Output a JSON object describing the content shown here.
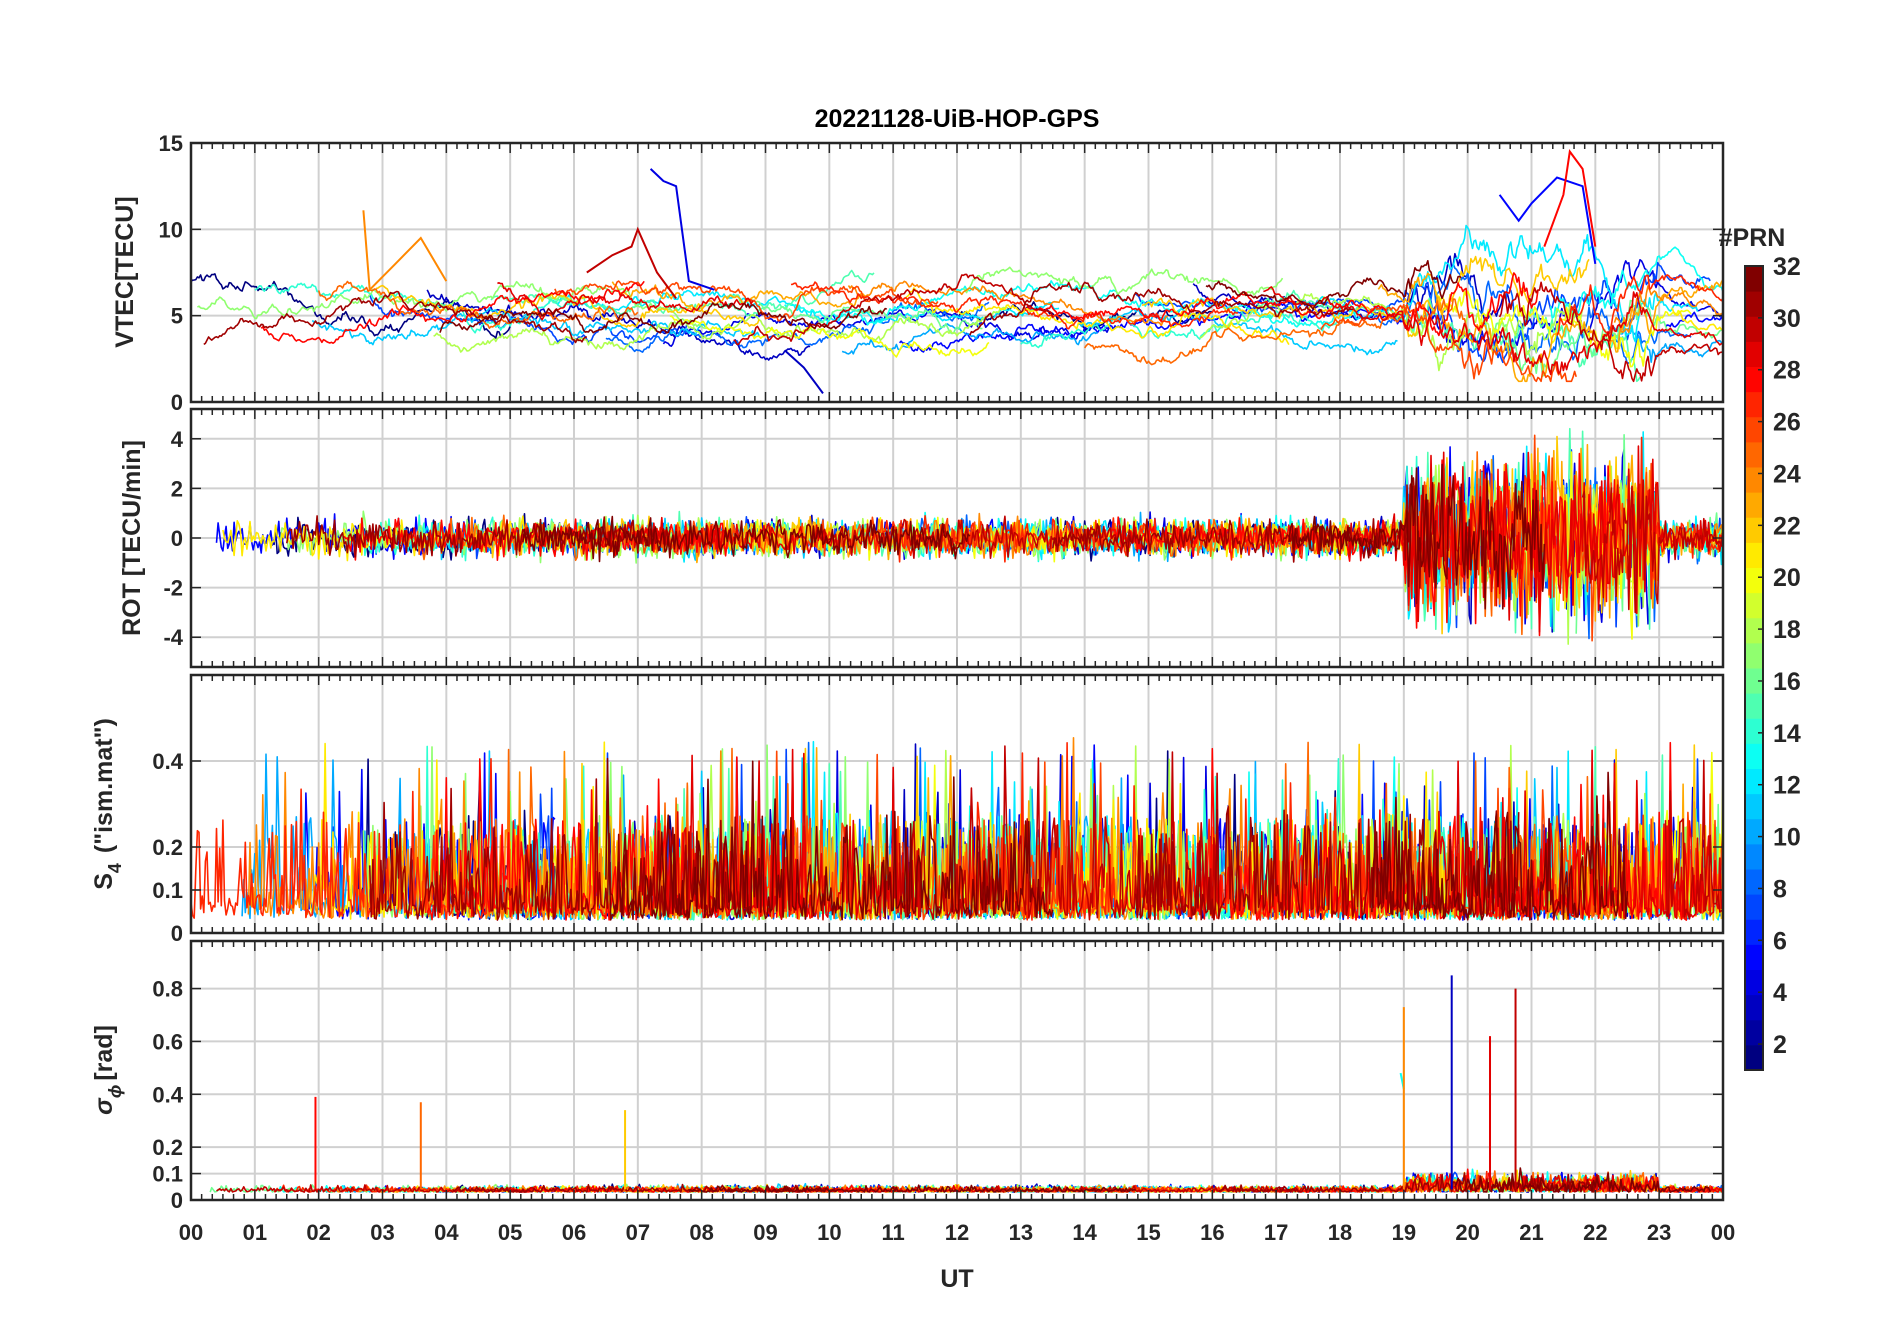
{
  "chart_data": {
    "type": "line",
    "title": "20221128-UiB-HOP-GPS",
    "xlabel": "UT",
    "x_ticks": [
      "00",
      "01",
      "02",
      "03",
      "04",
      "05",
      "06",
      "07",
      "08",
      "09",
      "10",
      "11",
      "12",
      "13",
      "14",
      "15",
      "16",
      "17",
      "18",
      "19",
      "20",
      "21",
      "22",
      "23",
      "00"
    ],
    "xlim": [
      0,
      24
    ],
    "grid": true,
    "colorbar": {
      "label": "#PRN",
      "range": [
        1,
        32
      ],
      "ticks": [
        "2",
        "4",
        "6",
        "8",
        "10",
        "12",
        "14",
        "16",
        "18",
        "20",
        "22",
        "24",
        "26",
        "28",
        "30",
        "32"
      ],
      "colormap": "jet",
      "placement": "right"
    },
    "panels": [
      {
        "ylabel": "VTEC[TECU]",
        "ylim": [
          0,
          15
        ],
        "y_ticks": [
          "0",
          "5",
          "10",
          "15"
        ],
        "series": [
          {
            "prn": 4,
            "x": [
              7.2,
              7.4,
              7.6,
              7.8,
              8.2
            ],
            "y": [
              13.5,
              12.8,
              12.5,
              7.0,
              6.5
            ]
          },
          {
            "prn": 30,
            "x": [
              6.2,
              6.6,
              6.9,
              7.0,
              7.3,
              7.6
            ],
            "y": [
              7.5,
              8.5,
              9.0,
              10.0,
              7.5,
              6.0
            ]
          },
          {
            "prn": 24,
            "x": [
              2.7,
              2.8,
              3.2,
              3.6,
              4.0
            ],
            "y": [
              11.1,
              6.5,
              8.0,
              9.5,
              7.0
            ]
          },
          {
            "prn": 5,
            "x": [
              20.5,
              20.8,
              21.0,
              21.4,
              21.8,
              22.0
            ],
            "y": [
              12.0,
              10.5,
              11.5,
              13.0,
              12.5,
              8.0
            ]
          },
          {
            "prn": 28,
            "x": [
              21.2,
              21.5,
              21.6,
              21.8,
              22.0
            ],
            "y": [
              9.0,
              12.0,
              14.5,
              13.5,
              9.0
            ]
          },
          {
            "prn": 3,
            "x": [
              9.3,
              9.6,
              9.8,
              9.9
            ],
            "y": [
              3.0,
              2.0,
              1.0,
              0.5
            ]
          }
        ]
      },
      {
        "ylabel": "ROT [TECU/min]",
        "ylim": [
          -5.2,
          5.2
        ],
        "y_ticks": [
          "-4",
          "-2",
          "0",
          "2",
          "4"
        ],
        "series": []
      },
      {
        "ylabel": "S4 (\"ism.mat\")",
        "ylabel_main": "S",
        "ylabel_sub": "4",
        "ylabel_rest": "(\"ism.mat\")",
        "ylim": [
          0,
          0.6
        ],
        "y_ticks": [
          "0",
          "0.1",
          "0.2",
          "0.4"
        ],
        "series": []
      },
      {
        "ylabel": "σϕ[rad]",
        "ylabel_main": "σ",
        "ylabel_sub": "ϕ",
        "ylabel_rest": "[rad]",
        "ylim": [
          0,
          0.98
        ],
        "y_ticks": [
          "0",
          "0.1",
          "0.2",
          "0.4",
          "0.6",
          "0.8"
        ],
        "series": [
          {
            "prn": 13,
            "x": [
              18.95,
              19.0
            ],
            "y": [
              0.48,
              0.42
            ]
          },
          {
            "prn": 24,
            "x": [
              19.0
            ],
            "y": [
              0.73
            ]
          },
          {
            "prn": 3,
            "x": [
              19.75
            ],
            "y": [
              0.85
            ]
          },
          {
            "prn": 29,
            "x": [
              20.35
            ],
            "y": [
              0.62
            ]
          },
          {
            "prn": 30,
            "x": [
              20.75
            ],
            "y": [
              0.8
            ]
          },
          {
            "prn": 28,
            "x": [
              1.95
            ],
            "y": [
              0.39
            ]
          },
          {
            "prn": 25,
            "x": [
              3.6
            ],
            "y": [
              0.37
            ]
          },
          {
            "prn": 22,
            "x": [
              6.8
            ],
            "y": [
              0.34
            ]
          }
        ]
      }
    ]
  }
}
